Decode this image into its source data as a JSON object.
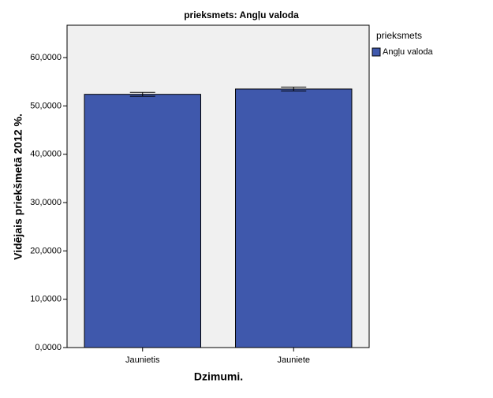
{
  "chart_data": {
    "type": "bar",
    "title": "prieksmets: Angļu valoda",
    "x_label": "Dzimumi.",
    "y_label": "Vidējais priekšmetā 2012 %.",
    "legend_title": "prieksmets",
    "categories": [
      "Jaunietis",
      "Jauniete"
    ],
    "series": [
      {
        "name": "Angļu valoda",
        "color": "#3f58ac",
        "values": [
          52.4,
          53.5
        ],
        "errors": [
          0.4,
          0.4
        ]
      }
    ],
    "ylim": [
      0,
      66.7
    ],
    "yticks": [
      {
        "value": 0,
        "label": "0,0000"
      },
      {
        "value": 10,
        "label": "10,0000"
      },
      {
        "value": 20,
        "label": "20,0000"
      },
      {
        "value": 30,
        "label": "30,0000"
      },
      {
        "value": 40,
        "label": "40,0000"
      },
      {
        "value": 50,
        "label": "50,0000"
      },
      {
        "value": 60,
        "label": "60,0000"
      }
    ]
  }
}
